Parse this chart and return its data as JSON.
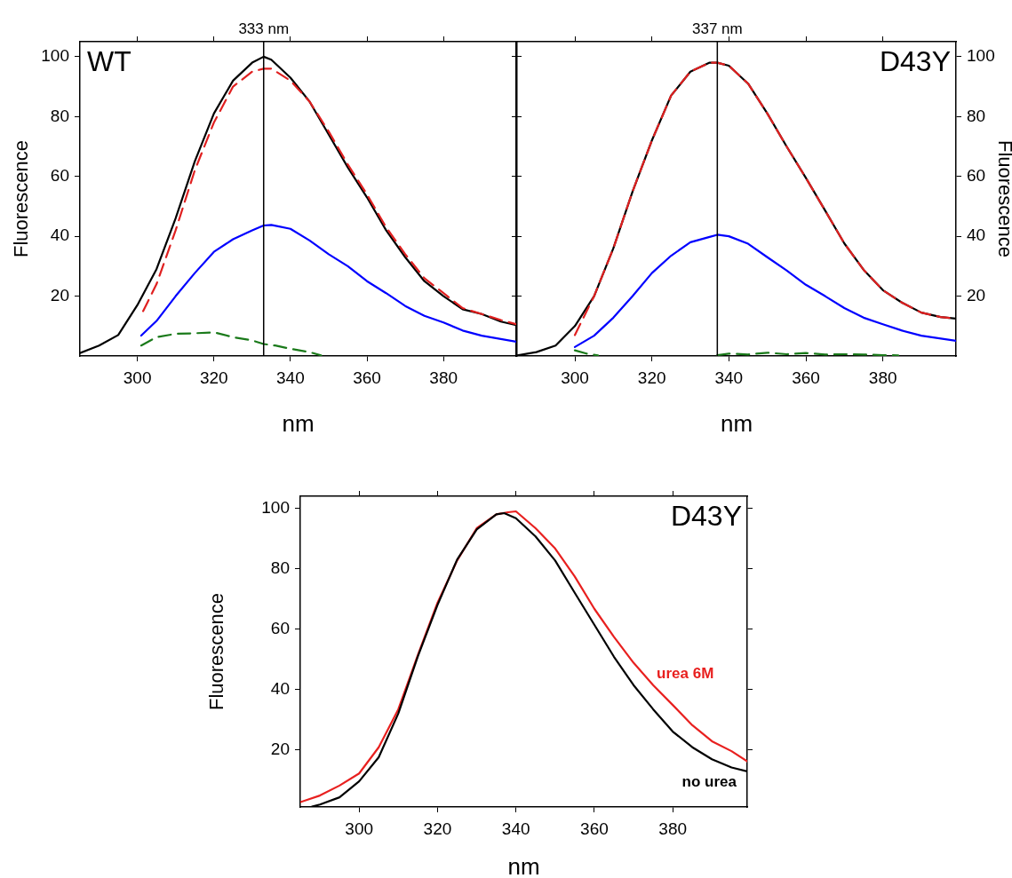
{
  "chart_data": [
    {
      "type": "line",
      "xlabel": "nm",
      "ylabel": "Fluorescence",
      "xlim": [
        285,
        399
      ],
      "ylim": [
        0,
        105
      ],
      "xticks": [
        300,
        320,
        340,
        360,
        380
      ],
      "yticks": [
        20,
        40,
        60,
        80,
        100
      ],
      "annotations": [
        "WT"
      ],
      "ref_lines": [
        {
          "axis": "x",
          "value": 333,
          "label": "333 nm",
          "color": "#000000"
        }
      ],
      "series": [
        {
          "color": "#000000",
          "line_style": "solid",
          "x": [
            285,
            290,
            295,
            300,
            305,
            310,
            315,
            320,
            325,
            330,
            333,
            335,
            340,
            345,
            350,
            355,
            360,
            365,
            370,
            375,
            380,
            385,
            390,
            395,
            399
          ],
          "values": [
            1,
            3.5,
            7,
            17,
            29,
            46,
            65,
            81,
            92,
            98,
            100,
            99,
            93,
            85,
            74,
            63,
            53,
            42,
            33,
            25,
            20,
            15.6,
            14,
            11.5,
            10.3
          ]
        },
        {
          "color": "#e02020",
          "line_style": "dashed",
          "x": [
            301.5,
            305,
            310,
            315,
            320,
            325,
            330,
            333,
            335,
            340,
            345,
            350,
            355,
            360,
            365,
            370,
            375,
            380,
            385,
            390,
            395,
            399
          ],
          "values": [
            15,
            24,
            42,
            62,
            78,
            90,
            95,
            96,
            96,
            92,
            85,
            75,
            64,
            54,
            43,
            34,
            26,
            21,
            16,
            14,
            12,
            10.6
          ]
        },
        {
          "color": "#0000ff",
          "line_style": "solid",
          "x": [
            301,
            305,
            310,
            315,
            320,
            325,
            330,
            333,
            335,
            340,
            345,
            350,
            355,
            360,
            365,
            370,
            375,
            380,
            385,
            390,
            399
          ],
          "values": [
            6.8,
            11.7,
            20,
            27.7,
            34.8,
            39,
            42,
            43.6,
            43.8,
            42.5,
            38.6,
            34,
            30,
            25,
            21,
            16.7,
            13.4,
            11.2,
            8.5,
            6.8,
            4.8
          ]
        },
        {
          "color": "#1a7a1a",
          "line_style": "dashed",
          "x": [
            301,
            305,
            310,
            315,
            320,
            325,
            330,
            333,
            336,
            340,
            345,
            348
          ],
          "values": [
            3.5,
            6.3,
            7.4,
            7.6,
            7.9,
            6.3,
            5.2,
            4,
            3.5,
            2.4,
            1.3,
            0.2
          ]
        }
      ]
    },
    {
      "type": "line",
      "xlabel": "nm",
      "y2label": "Fluorescence",
      "xlim": [
        285,
        399
      ],
      "y2lim": [
        0,
        105
      ],
      "xticks": [
        300,
        320,
        340,
        360,
        380
      ],
      "y2ticks": [
        20,
        40,
        60,
        80,
        100
      ],
      "annotations": [
        "D43Y"
      ],
      "ref_lines": [
        {
          "axis": "x",
          "value": 337,
          "label": "337 nm",
          "color": "#000000"
        }
      ],
      "series": [
        {
          "color": "#000000",
          "line_style": "solid",
          "axis": "y2",
          "x": [
            285,
            290,
            295,
            300,
            305,
            310,
            315,
            320,
            325,
            330,
            335,
            337,
            340,
            345,
            350,
            355,
            360,
            365,
            370,
            375,
            380,
            385,
            390,
            395,
            399
          ],
          "values": [
            0.2,
            1.3,
            3.5,
            10,
            20,
            36,
            55,
            72,
            87,
            95,
            98,
            98,
            97,
            91,
            81,
            70,
            59.5,
            48.6,
            37.6,
            28.8,
            22,
            17.8,
            14.5,
            13,
            12.5
          ]
        },
        {
          "color": "#e02020",
          "line_style": "dashed",
          "axis": "y2",
          "x": [
            300,
            305,
            310,
            315,
            320,
            325,
            330,
            335,
            337,
            340,
            345,
            350,
            355,
            360,
            365,
            370,
            375,
            380,
            385,
            390,
            395,
            399
          ],
          "values": [
            7,
            20,
            36,
            55,
            72,
            87,
            95,
            98,
            98,
            97,
            91,
            81,
            70,
            59.5,
            48.6,
            37.6,
            28.8,
            22,
            17.8,
            14.5,
            13,
            12.5
          ]
        },
        {
          "color": "#0000ff",
          "line_style": "solid",
          "axis": "y2",
          "x": [
            300,
            305,
            310,
            315,
            320,
            325,
            330,
            335,
            337,
            340,
            345,
            350,
            355,
            360,
            365,
            370,
            375,
            380,
            385,
            390,
            399
          ],
          "values": [
            3,
            6.8,
            12.8,
            20,
            27.7,
            33.5,
            38,
            39.8,
            40.5,
            40,
            37.5,
            33,
            28.6,
            23.8,
            20,
            16,
            12.8,
            10.6,
            8.5,
            6.8,
            5.1
          ]
        },
        {
          "color": "#1a7a1a",
          "line_style": "dashed",
          "axis": "y2",
          "x": [
            300,
            303,
            306,
            320,
            337,
            340,
            345,
            350,
            355,
            360,
            365,
            370,
            375,
            380,
            384
          ],
          "values": [
            1.9,
            0.8,
            0.2,
            null,
            0.3,
            0.8,
            0.5,
            1.1,
            0.6,
            1,
            0.5,
            0.6,
            0.5,
            0.3,
            0.2
          ]
        }
      ]
    },
    {
      "type": "line",
      "xlabel": "nm",
      "ylabel": "Fluorescence",
      "xlim": [
        285,
        399
      ],
      "ylim": [
        1,
        104
      ],
      "xticks": [
        300,
        320,
        340,
        360,
        380
      ],
      "yticks": [
        20,
        40,
        60,
        80,
        100
      ],
      "annotations": [
        "D43Y"
      ],
      "series": [
        {
          "name": "urea 6M",
          "color": "#e8201f",
          "line_style": "solid",
          "x": [
            285,
            290,
            295,
            300,
            305,
            310,
            315,
            320,
            325,
            330,
            335,
            338,
            340,
            345,
            350,
            355,
            360,
            365,
            370,
            375,
            380,
            385,
            390,
            395,
            399
          ],
          "values": [
            2.6,
            4.8,
            8.1,
            12.1,
            20.8,
            33.4,
            51.4,
            68.7,
            82.7,
            93.4,
            98,
            98.7,
            99,
            93.4,
            86.7,
            77.4,
            66.7,
            57.4,
            48.8,
            41.4,
            34.8,
            28.1,
            22.8,
            19.5,
            16.1
          ]
        },
        {
          "name": "no urea",
          "color": "#000000",
          "line_style": "solid",
          "x": [
            288,
            290,
            295,
            300,
            305,
            310,
            315,
            320,
            325,
            330,
            335,
            337,
            340,
            345,
            350,
            355,
            360,
            365,
            370,
            375,
            380,
            385,
            390,
            395,
            399
          ],
          "values": [
            1.1,
            1.8,
            4.2,
            9.5,
            17.5,
            32,
            51,
            68,
            83,
            93,
            98,
            98.4,
            96.7,
            90.7,
            82.7,
            72,
            61.4,
            50.8,
            41.4,
            33.4,
            26,
            20.8,
            16.8,
            14.1,
            12.8
          ]
        }
      ]
    }
  ]
}
